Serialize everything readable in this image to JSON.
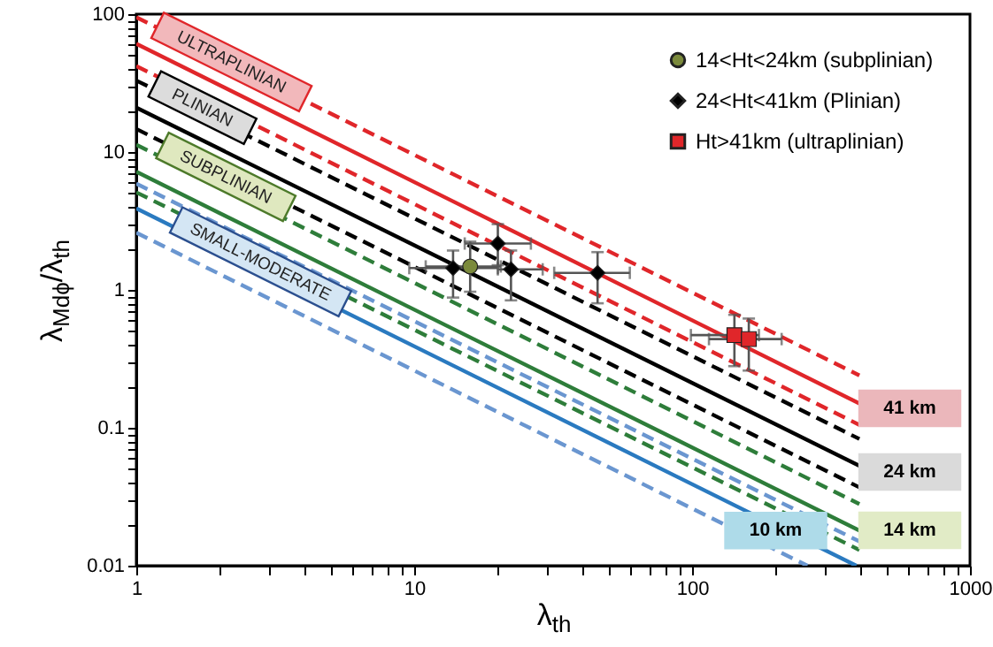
{
  "chart_data": {
    "type": "line",
    "xlabel": "λ$_{th}$",
    "ylabel": "λ$_{Mdϕ}$/λ$_{th}$",
    "log": "xy",
    "grid": false,
    "legend": "top right",
    "xlim": [
      1,
      1000
    ],
    "ylim": [
      0.01,
      100
    ],
    "xticks": [
      1,
      {
        "value": 2,
        "label": null
      },
      {
        "value": 3,
        "label": null
      },
      {
        "value": 4,
        "label": null
      },
      {
        "value": 5,
        "label": null
      },
      {
        "value": 6,
        "label": null
      },
      {
        "value": 7,
        "label": null
      },
      {
        "value": 8,
        "label": null
      },
      {
        "value": 9,
        "label": null
      },
      10,
      {
        "value": 20,
        "label": null
      },
      {
        "value": 30,
        "label": null
      },
      {
        "value": 40,
        "label": null
      },
      {
        "value": 50,
        "label": null
      },
      {
        "value": 60,
        "label": null
      },
      {
        "value": 70,
        "label": null
      },
      {
        "value": 80,
        "label": null
      },
      {
        "value": 90,
        "label": null
      },
      100,
      {
        "value": 200,
        "label": null
      },
      {
        "value": 300,
        "label": null
      },
      {
        "value": 400,
        "label": null
      },
      {
        "value": 500,
        "label": null
      },
      {
        "value": 600,
        "label": null
      },
      {
        "value": 700,
        "label": null
      },
      {
        "value": 800,
        "label": null
      },
      {
        "value": 900,
        "label": null
      },
      1000
    ],
    "yticks": [
      0.01,
      {
        "value": 0.02,
        "label": null
      },
      {
        "value": 0.03,
        "label": null
      },
      {
        "value": 0.04,
        "label": null
      },
      {
        "value": 0.05,
        "label": null
      },
      {
        "value": 0.06,
        "label": null
      },
      {
        "value": 0.07,
        "label": null
      },
      {
        "value": 0.08,
        "label": null
      },
      {
        "value": 0.09,
        "label": null
      },
      0.1,
      {
        "value": 0.2,
        "label": null
      },
      {
        "value": 0.3,
        "label": null
      },
      {
        "value": 0.4,
        "label": null
      },
      {
        "value": 0.5,
        "label": null
      },
      {
        "value": 0.6,
        "label": null
      },
      {
        "value": 0.7,
        "label": null
      },
      {
        "value": 0.8,
        "label": null
      },
      {
        "value": 0.9,
        "label": null
      },
      1,
      {
        "value": 2,
        "label": null
      },
      {
        "value": 3,
        "label": null
      },
      {
        "value": 4,
        "label": null
      },
      {
        "value": 5,
        "label": null
      },
      {
        "value": 6,
        "label": null
      },
      {
        "value": 7,
        "label": null
      },
      {
        "value": 8,
        "label": null
      },
      {
        "value": 9,
        "label": null
      },
      10,
      {
        "value": 20,
        "label": null
      },
      {
        "value": 30,
        "label": null
      },
      {
        "value": 40,
        "label": null
      },
      {
        "value": 50,
        "label": null
      },
      {
        "value": 60,
        "label": null
      },
      {
        "value": 70,
        "label": null
      },
      {
        "value": 80,
        "label": null
      },
      {
        "value": 90,
        "label": null
      },
      100
    ],
    "series": [
      {
        "color": "#e0262a",
        "line_style": "dashed",
        "x": [
          1,
          400
        ],
        "values": [
          95,
          0.24
        ]
      },
      {
        "color": "#e0262a",
        "line_style": "solid",
        "x": [
          1,
          400
        ],
        "values": [
          61,
          0.15
        ]
      },
      {
        "color": "#e0262a",
        "line_style": "dashed",
        "x": [
          1,
          400
        ],
        "values": [
          42,
          0.105
        ]
      },
      {
        "color": "#000000",
        "line_style": "dashed",
        "x": [
          1,
          400
        ],
        "values": [
          33,
          0.083
        ]
      },
      {
        "color": "#000000",
        "line_style": "solid",
        "x": [
          1,
          400
        ],
        "values": [
          21,
          0.053
        ]
      },
      {
        "color": "#000000",
        "line_style": "dashed",
        "x": [
          1,
          400
        ],
        "values": [
          14.7,
          0.037
        ]
      },
      {
        "color": "#2e7d3a",
        "line_style": "dashed",
        "x": [
          1,
          400
        ],
        "values": [
          11.3,
          0.028
        ]
      },
      {
        "color": "#2e7d3a",
        "line_style": "solid",
        "x": [
          1,
          400
        ],
        "values": [
          7.2,
          0.018
        ]
      },
      {
        "color": "#6a96d0",
        "line_style": "dashed",
        "x": [
          1,
          400
        ],
        "values": [
          5.9,
          0.015
        ]
      },
      {
        "color": "#2e7d3a",
        "line_style": "dashed",
        "x": [
          1,
          400
        ],
        "values": [
          5.1,
          0.013
        ]
      },
      {
        "color": "#2a7ac0",
        "line_style": "solid",
        "x": [
          1,
          390
        ],
        "values": [
          3.9,
          0.01
        ]
      },
      {
        "color": "#6a96d0",
        "line_style": "dashed",
        "x": [
          1,
          260
        ],
        "values": [
          2.6,
          0.01
        ]
      },
      {
        "type": "scatter",
        "name": "14<Ht<24km (subplinian)",
        "color": "#7b8a3c",
        "marker": "circle",
        "x": [
          15.9
        ],
        "values": [
          1.48
        ],
        "xerrors": [
          [
            11,
            20.5
          ]
        ],
        "errors": [
          [
            0.97,
            2.24
          ]
        ]
      },
      {
        "type": "scatter",
        "name": "24<Ht<41km (Plinian)",
        "color": "#000000",
        "marker": "diamond",
        "x": [
          13.8,
          20,
          22.3,
          45.7
        ],
        "values": [
          1.44,
          2.17,
          1.41,
          1.33
        ],
        "xerrors": [
          [
            9.6,
            20
          ],
          [
            15.2,
            26.3
          ],
          [
            20,
            29
          ],
          [
            31.9,
            59.7
          ]
        ],
        "errors": [
          [
            0.88,
            1.93
          ],
          [
            1.51,
            3.0
          ],
          [
            0.84,
            1.93
          ],
          [
            0.8,
            1.88
          ]
        ]
      },
      {
        "type": "scatter",
        "name": "Ht>41km (ultraplinian)",
        "color": "#e0262a",
        "marker": "square",
        "x": [
          142,
          160
        ],
        "values": [
          0.47,
          0.44
        ],
        "xerrors": [
          [
            99,
            174
          ],
          [
            115,
            210
          ]
        ],
        "errors": [
          [
            0.28,
            0.66
          ],
          [
            0.26,
            0.62
          ]
        ]
      }
    ],
    "annotations": [
      {
        "text": "ULTRAPLINIAN",
        "x": 2.2,
        "y": 45
      },
      {
        "text": "PLINIAN",
        "x": 1.73,
        "y": 21
      },
      {
        "text": "SUBPLINIAN",
        "x": 2.1,
        "y": 6.6
      },
      {
        "text": "SMALL-MODERATE",
        "x": 2.8,
        "y": 1.6
      },
      "41 km",
      "24 km",
      "14 km",
      {
        "text": "10 km",
        "x": 200,
        "y": 0.018
      }
    ]
  }
}
